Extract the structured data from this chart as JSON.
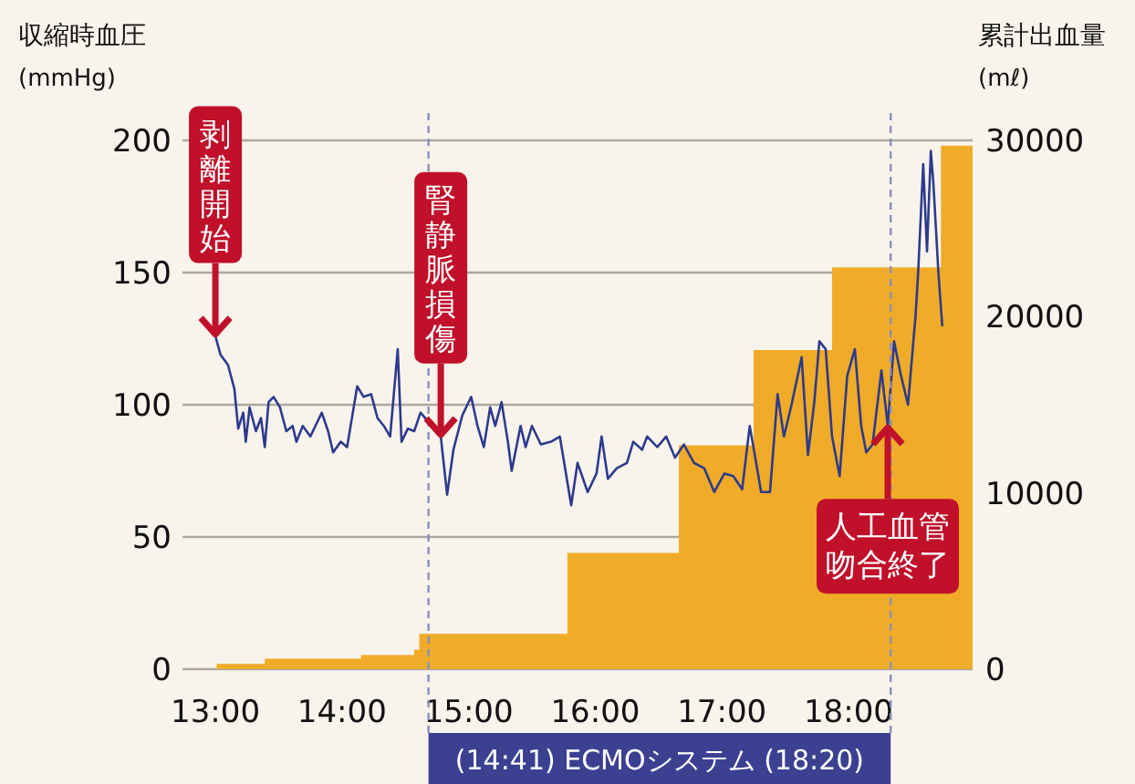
{
  "chart_data": {
    "type": "line",
    "ylabel": "収縮時血圧 (mmHg)",
    "y2label": "累計出血量 (mℓ)",
    "xlim": [
      12.74,
      18.98
    ],
    "xticks": [
      {
        "value": 13,
        "label": "13:00"
      },
      {
        "value": 14,
        "label": "14:00"
      },
      {
        "value": 15,
        "label": "15:00"
      },
      {
        "value": 16,
        "label": "16:00"
      },
      {
        "value": 17,
        "label": "17:00"
      },
      {
        "value": 18,
        "label": "18:00"
      }
    ],
    "ylim": [
      0,
      200
    ],
    "yticks": [
      0,
      50,
      100,
      150,
      200
    ],
    "y2lim": [
      0,
      30000
    ],
    "y2ticks": [
      0,
      10000,
      20000,
      30000
    ],
    "grid": "y",
    "series": [
      {
        "type": "area",
        "axis": "y2",
        "color": "#f0ac28",
        "x": [
          13.01,
          13.39,
          13.39,
          14.15,
          14.15,
          14.57,
          14.57,
          14.61,
          14.61,
          15.78,
          15.78,
          16.66,
          16.66,
          17.25,
          17.25,
          17.87,
          17.87,
          18.73,
          18.73,
          18.98
        ],
        "values": [
          300,
          300,
          600,
          600,
          800,
          800,
          1100,
          1100,
          2000,
          2000,
          6600,
          6600,
          12700,
          12700,
          18100,
          18100,
          22800,
          22800,
          29700,
          29700
        ]
      },
      {
        "color": "#2e3a8c",
        "x": [
          13.0,
          13.04,
          13.1,
          13.15,
          13.18,
          13.22,
          13.24,
          13.27,
          13.32,
          13.36,
          13.39,
          13.42,
          13.46,
          13.51,
          13.56,
          13.61,
          13.64,
          13.69,
          13.75,
          13.84,
          13.89,
          13.93,
          13.99,
          14.04,
          14.12,
          14.17,
          14.23,
          14.28,
          14.33,
          14.38,
          14.44,
          14.47,
          14.52,
          14.57,
          14.62,
          14.71,
          14.78,
          14.83,
          14.88,
          14.95,
          15.02,
          15.07,
          15.12,
          15.17,
          15.21,
          15.26,
          15.31,
          15.34,
          15.41,
          15.45,
          15.5,
          15.57,
          15.65,
          15.72,
          15.81,
          15.86,
          15.94,
          16.01,
          16.05,
          16.1,
          16.17,
          16.25,
          16.3,
          16.37,
          16.41,
          16.49,
          16.56,
          16.63,
          16.7,
          16.78,
          16.86,
          16.94,
          17.02,
          17.09,
          17.16,
          17.22,
          17.26,
          17.31,
          17.38,
          17.44,
          17.49,
          17.55,
          17.63,
          17.68,
          17.73,
          17.77,
          17.82,
          17.87,
          17.93,
          17.99,
          18.05,
          18.1,
          18.14,
          18.19,
          18.26,
          18.31,
          18.36,
          18.41,
          18.47,
          18.53,
          18.55,
          18.59,
          18.62,
          18.65,
          18.67,
          18.71,
          18.74
        ],
        "values": [
          126,
          119,
          115,
          106,
          91,
          97,
          86,
          99,
          90,
          95,
          84,
          101,
          103,
          99,
          90,
          92,
          86,
          92,
          88,
          97,
          90,
          82,
          86,
          84,
          107,
          103,
          104,
          95,
          92,
          88,
          121,
          86,
          91,
          90,
          97,
          92,
          88,
          66,
          83,
          96,
          103,
          92,
          84,
          99,
          92,
          101,
          86,
          75,
          92,
          84,
          92,
          85,
          86,
          88,
          62,
          78,
          67,
          74,
          88,
          72,
          76,
          78,
          86,
          83,
          88,
          84,
          88,
          80,
          85,
          78,
          76,
          67,
          74,
          73,
          68,
          92,
          81,
          67,
          67,
          104,
          88,
          100,
          118,
          81,
          101,
          124,
          121,
          88,
          73,
          111,
          121,
          92,
          82,
          85,
          113,
          92,
          124,
          112,
          100,
          134,
          150,
          191,
          158,
          196,
          184,
          150,
          130
        ]
      }
    ],
    "ref_lines": [
      {
        "axis": "x",
        "value": 14.683,
        "color": "#8a8fb8",
        "line_style": "dashed"
      },
      {
        "axis": "x",
        "value": 18.333,
        "color": "#8a8fb8",
        "line_style": "dashed"
      }
    ],
    "annotations": [
      "(14:41) ECMOシステム (18:20)",
      {
        "text": "剥離開始",
        "x": 13.0,
        "y": 126
      },
      {
        "text": "腎静脈損傷",
        "x": 14.78,
        "y": 88
      },
      {
        "text": "人工血管吻合終了",
        "x": 18.31,
        "y": 92
      }
    ]
  }
}
